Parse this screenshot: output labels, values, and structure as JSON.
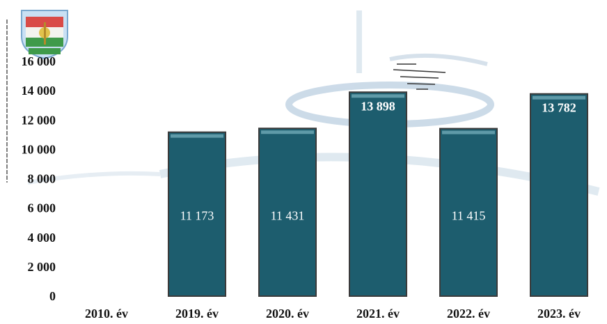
{
  "chart_data": {
    "type": "bar",
    "categories": [
      "2010. év",
      "2019. év",
      "2020. év",
      "2021. év",
      "2022. év",
      "2023. év"
    ],
    "values": [
      0,
      11173,
      11431,
      13898,
      11415,
      13782
    ],
    "value_labels": [
      "",
      "11 173",
      "11 431",
      "13 898",
      "11 415",
      "13 782"
    ],
    "y_ticks": [
      0,
      2000,
      4000,
      6000,
      8000,
      10000,
      12000,
      14000,
      16000
    ],
    "y_tick_labels": [
      "0",
      "2 000",
      "4 000",
      "6 000",
      "8 000",
      "10 000",
      "12 000",
      "14 000",
      "16 000"
    ],
    "ylim": [
      0,
      16000
    ],
    "title": "",
    "xlabel": "",
    "ylabel": "",
    "grid": false,
    "legend": "none",
    "bar_color": "#1d5d6e",
    "bar_highlight_color": "#5f9aa8",
    "bar_border_color": "#3a3a3a"
  },
  "watermark": {
    "icon": "crest-emblem-icon",
    "colors": [
      "#c9383a",
      "#2f8a3e",
      "#d7b84a",
      "#5a8fc9"
    ],
    "motto_text": ""
  }
}
